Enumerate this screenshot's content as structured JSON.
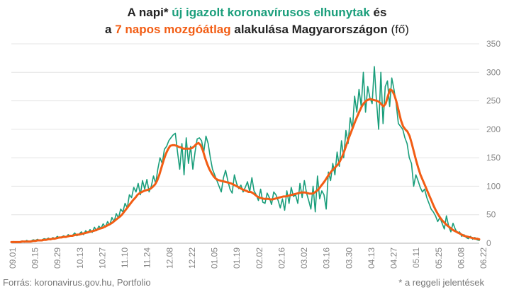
{
  "title": {
    "line1_part1": "A napi* ",
    "line1_green": "új igazolt koronavírusos elhunytak",
    "line1_part2": " és",
    "line2_part1": "a ",
    "line2_orange": "7 napos mozgóátlag",
    "line2_part2": " alakulása Magyarországon ",
    "line2_unit": "(fő)"
  },
  "source": "Forrás: koronavirus.gov.hu, Portfolio",
  "note": "* a reggeli jelentések",
  "colors": {
    "daily": "#1a9e7b",
    "avg": "#f25d14",
    "grid": "#e4e4e4",
    "axis_text": "#888888"
  },
  "chart_data": {
    "type": "line",
    "ylim": [
      0,
      350
    ],
    "yticks": [
      0,
      50,
      100,
      150,
      200,
      250,
      300,
      350
    ],
    "xticks": [
      "09.01",
      "09.15",
      "09.29",
      "10.13",
      "10.27",
      "11.10",
      "11.24",
      "12.08",
      "12.22",
      "01.05",
      "01.19",
      "02.02",
      "02.16",
      "03.02",
      "03.16",
      "03.30",
      "04.13",
      "04.27",
      "05.11",
      "05.25",
      "06.08",
      "06.22"
    ],
    "series": [
      {
        "key": "daily",
        "values": [
          2,
          3,
          1,
          2,
          3,
          4,
          2,
          5,
          3,
          4,
          6,
          5,
          7,
          4,
          6,
          8,
          7,
          9,
          6,
          10,
          8,
          12,
          9,
          11,
          13,
          10,
          15,
          12,
          14,
          18,
          13,
          16,
          20,
          15,
          22,
          18,
          24,
          19,
          28,
          22,
          30,
          26,
          34,
          28,
          38,
          32,
          45,
          38,
          52,
          44,
          60,
          55,
          70,
          62,
          85,
          80,
          98,
          90,
          105,
          85,
          110,
          95,
          112,
          90,
          100,
          118,
          105,
          130,
          150,
          140,
          165,
          170,
          180,
          185,
          190,
          193,
          160,
          130,
          175,
          120,
          185,
          140,
          170,
          130,
          160,
          183,
          185,
          180,
          160,
          188,
          175,
          150,
          130,
          120,
          110,
          100,
          90,
          115,
          128,
          110,
          95,
          88,
          120,
          105,
          96,
          102,
          90,
          98,
          108,
          90,
          115,
          92,
          85,
          75,
          95,
          72,
          70,
          88,
          80,
          68,
          90,
          85,
          75,
          62,
          78,
          58,
          92,
          70,
          98,
          82,
          85,
          70,
          105,
          80,
          110,
          88,
          75,
          60,
          100,
          55,
          118,
          78,
          92,
          85,
          60,
          125,
          110,
          140,
          120,
          160,
          135,
          180,
          150,
          198,
          175,
          220,
          200,
          258,
          230,
          270,
          240,
          300,
          230,
          275,
          255,
          245,
          310,
          250,
          200,
          300,
          210,
          275,
          285,
          240,
          290,
          270,
          245,
          210,
          205,
          200,
          185,
          175,
          150,
          140,
          100,
          120,
          110,
          98,
          90,
          95,
          80,
          70,
          60,
          55,
          48,
          38,
          45,
          35,
          25,
          48,
          30,
          20,
          35,
          25,
          18,
          20,
          12,
          15,
          10,
          8,
          12,
          7,
          10,
          6,
          5
        ]
      },
      {
        "key": "avg",
        "values": [
          2,
          2,
          2,
          2,
          2,
          3,
          3,
          3,
          3,
          3,
          4,
          4,
          5,
          5,
          5,
          6,
          6,
          7,
          7,
          8,
          8,
          9,
          10,
          10,
          11,
          11,
          12,
          13,
          13,
          14,
          15,
          15,
          16,
          17,
          18,
          19,
          20,
          21,
          22,
          23,
          25,
          26,
          27,
          29,
          31,
          33,
          35,
          38,
          41,
          44,
          47,
          51,
          56,
          61,
          66,
          71,
          76,
          80,
          85,
          88,
          90,
          92,
          93,
          94,
          96,
          99,
          103,
          110,
          120,
          133,
          146,
          157,
          165,
          171,
          172,
          172,
          171,
          169,
          168,
          166,
          166,
          166,
          166,
          167,
          170,
          174,
          176,
          172,
          163,
          150,
          139,
          130,
          123,
          117,
          113,
          111,
          110,
          109,
          108,
          107,
          106,
          105,
          103,
          101,
          99,
          97,
          95,
          93,
          92,
          90,
          90,
          88,
          85,
          82,
          80,
          79,
          78,
          78,
          78,
          77,
          77,
          78,
          79,
          80,
          81,
          82,
          82,
          83,
          84,
          85,
          86,
          87,
          88,
          89,
          89,
          89,
          88,
          87,
          87,
          88,
          91,
          94,
          99,
          104,
          109,
          115,
          121,
          126,
          130,
          134,
          138,
          144,
          152,
          162,
          173,
          184,
          194,
          204,
          214,
          223,
          232,
          240,
          246,
          250,
          252,
          253,
          252,
          251,
          250,
          248,
          244,
          240,
          245,
          258,
          270,
          268,
          260,
          248,
          232,
          216,
          205,
          200,
          196,
          188,
          175,
          160,
          145,
          132,
          120,
          111,
          102,
          93,
          84,
          75,
          66,
          58,
          51,
          45,
          40,
          36,
          32,
          29,
          26,
          23,
          21,
          19,
          17,
          15,
          13,
          12,
          11,
          10,
          9,
          8,
          8,
          7
        ]
      }
    ]
  }
}
